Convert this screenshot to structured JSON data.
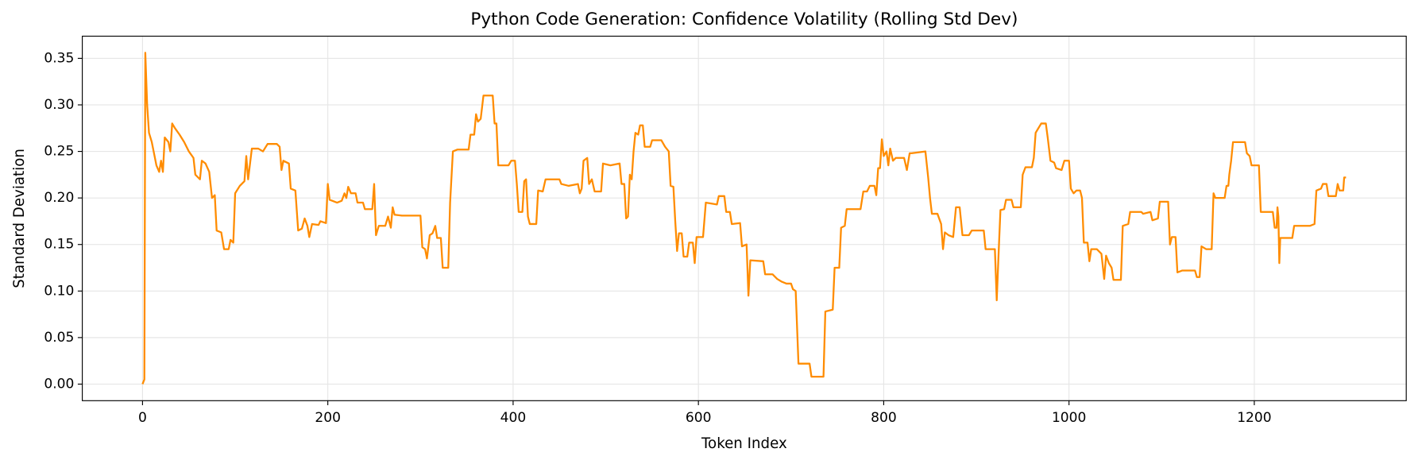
{
  "chart_data": {
    "type": "line",
    "title": "Python Code Generation: Confidence Volatility (Rolling Std Dev)",
    "x_label": "Token Index",
    "y_label": "Standard Deviation",
    "xlim": [
      -65,
      1364
    ],
    "ylim": [
      -0.0178,
      0.3738
    ],
    "xticks": [
      0,
      200,
      400,
      600,
      800,
      1000,
      1200
    ],
    "yticks": [
      {
        "value": 0,
        "label": "0.00"
      },
      0.05,
      {
        "value": 0.1,
        "label": "0.10"
      },
      0.15,
      {
        "value": 0.2,
        "label": "0.20"
      },
      0.25,
      {
        "value": 0.3,
        "label": "0.30"
      },
      0.35
    ],
    "grid": true,
    "x": [
      0,
      2,
      3,
      5,
      7,
      10,
      12,
      15,
      18,
      20,
      22,
      24,
      28,
      30,
      32,
      35,
      40,
      45,
      50,
      55,
      57,
      60,
      62,
      64,
      68,
      72,
      75,
      78,
      80,
      85,
      88,
      93,
      95,
      98,
      100,
      105,
      110,
      112,
      114,
      118,
      125,
      130,
      135,
      145,
      148,
      150,
      152,
      158,
      160,
      165,
      168,
      172,
      175,
      178,
      180,
      183,
      190,
      192,
      198,
      200,
      202,
      210,
      215,
      218,
      220,
      222,
      225,
      230,
      232,
      238,
      240,
      248,
      250,
      252,
      255,
      262,
      265,
      268,
      270,
      272,
      280,
      300,
      302,
      305,
      307,
      310,
      313,
      316,
      318,
      322,
      324,
      330,
      332,
      335,
      340,
      352,
      354,
      358,
      360,
      362,
      365,
      368,
      378,
      380,
      382,
      384,
      395,
      398,
      402,
      404,
      406,
      410,
      412,
      414,
      416,
      418,
      425,
      427,
      432,
      435,
      450,
      452,
      460,
      470,
      472,
      474,
      476,
      480,
      482,
      485,
      488,
      495,
      497,
      505,
      515,
      517,
      520,
      522,
      524,
      526,
      528,
      530,
      532,
      535,
      537,
      540,
      542,
      548,
      550,
      560,
      564,
      568,
      570,
      573,
      575,
      577,
      579,
      582,
      584,
      588,
      590,
      594,
      596,
      598,
      605,
      608,
      620,
      622,
      628,
      630,
      634,
      636,
      645,
      647,
      652,
      654,
      656,
      670,
      672,
      680,
      685,
      690,
      695,
      700,
      702,
      705,
      708,
      720,
      722,
      735,
      737,
      745,
      747,
      752,
      754,
      758,
      760,
      775,
      778,
      782,
      785,
      790,
      792,
      794,
      796,
      798,
      800,
      803,
      805,
      807,
      810,
      813,
      822,
      825,
      828,
      830,
      845,
      848,
      850,
      852,
      858,
      862,
      864,
      866,
      870,
      875,
      878,
      882,
      885,
      892,
      895,
      908,
      910,
      920,
      922,
      924,
      926,
      930,
      932,
      938,
      940,
      948,
      950,
      953,
      960,
      962,
      964,
      970,
      975,
      977,
      980,
      984,
      986,
      992,
      995,
      1000,
      1002,
      1005,
      1008,
      1012,
      1014,
      1016,
      1020,
      1022,
      1024,
      1030,
      1035,
      1038,
      1040,
      1043,
      1046,
      1048,
      1056,
      1058,
      1064,
      1066,
      1078,
      1080,
      1088,
      1090,
      1096,
      1098,
      1107,
      1109,
      1111,
      1115,
      1117,
      1122,
      1136,
      1138,
      1141,
      1143,
      1148,
      1154,
      1156,
      1158,
      1168,
      1170,
      1172,
      1173,
      1175,
      1177,
      1190,
      1192,
      1195,
      1197,
      1205,
      1207,
      1220,
      1222,
      1224,
      1225,
      1226,
      1227,
      1228,
      1241,
      1243,
      1260,
      1265,
      1267,
      1272,
      1274,
      1278,
      1280,
      1288,
      1290,
      1292,
      1296,
      1297,
      1299
    ],
    "series": [
      {
        "color": "#ff8c00",
        "values": [
          0,
          0.005,
          0.356,
          0.3,
          0.27,
          0.26,
          0.25,
          0.235,
          0.228,
          0.24,
          0.228,
          0.265,
          0.26,
          0.25,
          0.28,
          0.275,
          0.268,
          0.26,
          0.25,
          0.243,
          0.225,
          0.222,
          0.22,
          0.24,
          0.237,
          0.228,
          0.2,
          0.203,
          0.165,
          0.163,
          0.145,
          0.145,
          0.155,
          0.152,
          0.205,
          0.213,
          0.218,
          0.245,
          0.22,
          0.253,
          0.253,
          0.25,
          0.258,
          0.258,
          0.255,
          0.23,
          0.24,
          0.237,
          0.21,
          0.208,
          0.165,
          0.167,
          0.178,
          0.17,
          0.158,
          0.172,
          0.171,
          0.175,
          0.173,
          0.215,
          0.198,
          0.195,
          0.197,
          0.205,
          0.2,
          0.212,
          0.205,
          0.205,
          0.195,
          0.195,
          0.188,
          0.188,
          0.215,
          0.16,
          0.17,
          0.17,
          0.18,
          0.168,
          0.19,
          0.182,
          0.181,
          0.181,
          0.147,
          0.145,
          0.135,
          0.16,
          0.162,
          0.17,
          0.157,
          0.157,
          0.125,
          0.125,
          0.195,
          0.25,
          0.252,
          0.252,
          0.268,
          0.268,
          0.29,
          0.282,
          0.285,
          0.31,
          0.31,
          0.28,
          0.28,
          0.235,
          0.235,
          0.24,
          0.24,
          0.215,
          0.185,
          0.185,
          0.218,
          0.22,
          0.18,
          0.172,
          0.172,
          0.208,
          0.207,
          0.22,
          0.22,
          0.215,
          0.213,
          0.215,
          0.205,
          0.21,
          0.24,
          0.243,
          0.215,
          0.22,
          0.207,
          0.207,
          0.237,
          0.235,
          0.237,
          0.215,
          0.215,
          0.178,
          0.18,
          0.225,
          0.22,
          0.25,
          0.27,
          0.268,
          0.278,
          0.278,
          0.255,
          0.255,
          0.262,
          0.262,
          0.255,
          0.25,
          0.213,
          0.212,
          0.175,
          0.143,
          0.162,
          0.162,
          0.137,
          0.137,
          0.152,
          0.152,
          0.13,
          0.158,
          0.158,
          0.195,
          0.193,
          0.202,
          0.202,
          0.185,
          0.185,
          0.172,
          0.173,
          0.148,
          0.15,
          0.095,
          0.133,
          0.132,
          0.118,
          0.118,
          0.113,
          0.11,
          0.108,
          0.108,
          0.102,
          0.1,
          0.022,
          0.022,
          0.008,
          0.008,
          0.078,
          0.08,
          0.125,
          0.125,
          0.168,
          0.17,
          0.188,
          0.188,
          0.207,
          0.207,
          0.213,
          0.213,
          0.203,
          0.232,
          0.232,
          0.263,
          0.245,
          0.25,
          0.235,
          0.253,
          0.24,
          0.243,
          0.243,
          0.23,
          0.248,
          0.248,
          0.25,
          0.222,
          0.2,
          0.183,
          0.183,
          0.172,
          0.145,
          0.163,
          0.16,
          0.158,
          0.19,
          0.19,
          0.16,
          0.16,
          0.165,
          0.165,
          0.145,
          0.145,
          0.09,
          0.14,
          0.187,
          0.188,
          0.198,
          0.198,
          0.19,
          0.19,
          0.225,
          0.233,
          0.233,
          0.243,
          0.27,
          0.28,
          0.28,
          0.265,
          0.24,
          0.238,
          0.232,
          0.23,
          0.24,
          0.24,
          0.21,
          0.205,
          0.208,
          0.208,
          0.2,
          0.152,
          0.152,
          0.132,
          0.145,
          0.145,
          0.14,
          0.113,
          0.138,
          0.13,
          0.125,
          0.112,
          0.112,
          0.17,
          0.172,
          0.185,
          0.185,
          0.183,
          0.185,
          0.176,
          0.178,
          0.196,
          0.196,
          0.15,
          0.158,
          0.158,
          0.12,
          0.122,
          0.122,
          0.115,
          0.115,
          0.148,
          0.145,
          0.145,
          0.205,
          0.2,
          0.2,
          0.213,
          0.213,
          0.225,
          0.24,
          0.26,
          0.26,
          0.248,
          0.245,
          0.235,
          0.235,
          0.185,
          0.185,
          0.168,
          0.168,
          0.19,
          0.18,
          0.13,
          0.157,
          0.157,
          0.17,
          0.17,
          0.172,
          0.208,
          0.21,
          0.215,
          0.215,
          0.202,
          0.202,
          0.215,
          0.208,
          0.208,
          0.222,
          0.222
        ]
      }
    ]
  }
}
